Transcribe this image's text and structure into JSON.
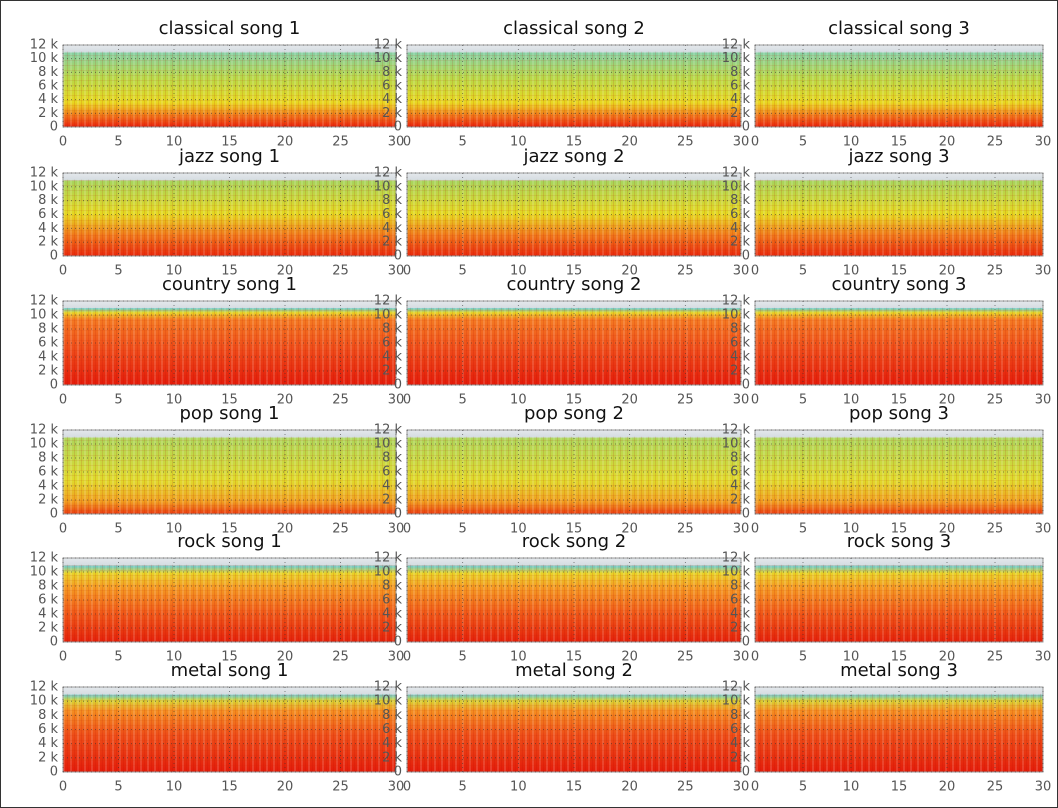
{
  "chart_data": [
    {
      "type": "spectrogram",
      "title": "classical song 1",
      "xlim": [
        0,
        30
      ],
      "ylim": [
        0,
        12000
      ],
      "xticks": [
        0,
        5,
        10,
        15,
        20,
        25,
        30
      ],
      "yticks": [
        0,
        {
          "value": 2000,
          "label": "2 k"
        },
        {
          "value": 4000,
          "label": "4 k"
        },
        {
          "value": 6000,
          "label": "6 k"
        },
        {
          "value": 8000,
          "label": "8 k"
        },
        {
          "value": 10000,
          "label": "10 k"
        },
        {
          "value": 12000,
          "label": "12 k"
        }
      ],
      "grid": true
    },
    {
      "type": "spectrogram",
      "title": "classical song 2",
      "xlim": [
        0,
        30
      ],
      "ylim": [
        0,
        12000
      ],
      "xticks": [
        0,
        5,
        10,
        15,
        20,
        25,
        30
      ],
      "yticks": [
        0,
        {
          "value": 2000,
          "label": "2 k"
        },
        {
          "value": 4000,
          "label": "4 k"
        },
        {
          "value": 6000,
          "label": "6 k"
        },
        {
          "value": 8000,
          "label": "8 k"
        },
        {
          "value": 10000,
          "label": "10 k"
        },
        {
          "value": 12000,
          "label": "12 k"
        }
      ],
      "grid": true
    },
    {
      "type": "spectrogram",
      "title": "classical song 3",
      "xlim": [
        0,
        30
      ],
      "ylim": [
        0,
        12000
      ],
      "xticks": [
        0,
        5,
        10,
        15,
        20,
        25,
        30
      ],
      "yticks": [
        0,
        {
          "value": 2000,
          "label": "2 k"
        },
        {
          "value": 4000,
          "label": "4 k"
        },
        {
          "value": 6000,
          "label": "6 k"
        },
        {
          "value": 8000,
          "label": "8 k"
        },
        {
          "value": 10000,
          "label": "10 k"
        },
        {
          "value": 12000,
          "label": "12 k"
        }
      ],
      "grid": true
    },
    {
      "type": "spectrogram",
      "title": "jazz song 1",
      "xlim": [
        0,
        30
      ],
      "ylim": [
        0,
        12000
      ],
      "xticks": [
        0,
        5,
        10,
        15,
        20,
        25,
        30
      ],
      "yticks": [
        0,
        {
          "value": 2000,
          "label": "2 k"
        },
        {
          "value": 4000,
          "label": "4 k"
        },
        {
          "value": 6000,
          "label": "6 k"
        },
        {
          "value": 8000,
          "label": "8 k"
        },
        {
          "value": 10000,
          "label": "10 k"
        },
        {
          "value": 12000,
          "label": "12 k"
        }
      ],
      "grid": true
    },
    {
      "type": "spectrogram",
      "title": "jazz song 2",
      "xlim": [
        0,
        30
      ],
      "ylim": [
        0,
        12000
      ],
      "xticks": [
        0,
        5,
        10,
        15,
        20,
        25,
        30
      ],
      "yticks": [
        0,
        {
          "value": 2000,
          "label": "2 k"
        },
        {
          "value": 4000,
          "label": "4 k"
        },
        {
          "value": 6000,
          "label": "6 k"
        },
        {
          "value": 8000,
          "label": "8 k"
        },
        {
          "value": 10000,
          "label": "10 k"
        },
        {
          "value": 12000,
          "label": "12 k"
        }
      ],
      "grid": true
    },
    {
      "type": "spectrogram",
      "title": "jazz song 3",
      "xlim": [
        0,
        30
      ],
      "ylim": [
        0,
        12000
      ],
      "xticks": [
        0,
        5,
        10,
        15,
        20,
        25,
        30
      ],
      "yticks": [
        0,
        {
          "value": 2000,
          "label": "2 k"
        },
        {
          "value": 4000,
          "label": "4 k"
        },
        {
          "value": 6000,
          "label": "6 k"
        },
        {
          "value": 8000,
          "label": "8 k"
        },
        {
          "value": 10000,
          "label": "10 k"
        },
        {
          "value": 12000,
          "label": "12 k"
        }
      ],
      "grid": true
    },
    {
      "type": "spectrogram",
      "title": "country song 1",
      "xlim": [
        0,
        30
      ],
      "ylim": [
        0,
        12000
      ],
      "xticks": [
        0,
        5,
        10,
        15,
        20,
        25,
        30
      ],
      "yticks": [
        0,
        {
          "value": 2000,
          "label": "2 k"
        },
        {
          "value": 4000,
          "label": "4 k"
        },
        {
          "value": 6000,
          "label": "6 k"
        },
        {
          "value": 8000,
          "label": "8 k"
        },
        {
          "value": 10000,
          "label": "10 k"
        },
        {
          "value": 12000,
          "label": "12 k"
        }
      ],
      "grid": true
    },
    {
      "type": "spectrogram",
      "title": "country song 2",
      "xlim": [
        0,
        30
      ],
      "ylim": [
        0,
        12000
      ],
      "xticks": [
        0,
        5,
        10,
        15,
        20,
        25,
        30
      ],
      "yticks": [
        0,
        {
          "value": 2000,
          "label": "2 k"
        },
        {
          "value": 4000,
          "label": "4 k"
        },
        {
          "value": 6000,
          "label": "6 k"
        },
        {
          "value": 8000,
          "label": "8 k"
        },
        {
          "value": 10000,
          "label": "10 k"
        },
        {
          "value": 12000,
          "label": "12 k"
        }
      ],
      "grid": true
    },
    {
      "type": "spectrogram",
      "title": "country song 3",
      "xlim": [
        0,
        30
      ],
      "ylim": [
        0,
        12000
      ],
      "xticks": [
        0,
        5,
        10,
        15,
        20,
        25,
        30
      ],
      "yticks": [
        0,
        {
          "value": 2000,
          "label": "2 k"
        },
        {
          "value": 4000,
          "label": "4 k"
        },
        {
          "value": 6000,
          "label": "6 k"
        },
        {
          "value": 8000,
          "label": "8 k"
        },
        {
          "value": 10000,
          "label": "10 k"
        },
        {
          "value": 12000,
          "label": "12 k"
        }
      ],
      "grid": true
    },
    {
      "type": "spectrogram",
      "title": "pop song 1",
      "xlim": [
        0,
        30
      ],
      "ylim": [
        0,
        12000
      ],
      "xticks": [
        0,
        5,
        10,
        15,
        20,
        25,
        30
      ],
      "yticks": [
        0,
        {
          "value": 2000,
          "label": "2 k"
        },
        {
          "value": 4000,
          "label": "4 k"
        },
        {
          "value": 6000,
          "label": "6 k"
        },
        {
          "value": 8000,
          "label": "8 k"
        },
        {
          "value": 10000,
          "label": "10 k"
        },
        {
          "value": 12000,
          "label": "12 k"
        }
      ],
      "grid": true
    },
    {
      "type": "spectrogram",
      "title": "pop song 2",
      "xlim": [
        0,
        30
      ],
      "ylim": [
        0,
        12000
      ],
      "xticks": [
        0,
        5,
        10,
        15,
        20,
        25,
        30
      ],
      "yticks": [
        0,
        {
          "value": 2000,
          "label": "2 k"
        },
        {
          "value": 4000,
          "label": "4 k"
        },
        {
          "value": 6000,
          "label": "6 k"
        },
        {
          "value": 8000,
          "label": "8 k"
        },
        {
          "value": 10000,
          "label": "10 k"
        },
        {
          "value": 12000,
          "label": "12 k"
        }
      ],
      "grid": true
    },
    {
      "type": "spectrogram",
      "title": "pop song 3",
      "xlim": [
        0,
        30
      ],
      "ylim": [
        0,
        12000
      ],
      "xticks": [
        0,
        5,
        10,
        15,
        20,
        25,
        30
      ],
      "yticks": [
        0,
        {
          "value": 2000,
          "label": "2 k"
        },
        {
          "value": 4000,
          "label": "4 k"
        },
        {
          "value": 6000,
          "label": "6 k"
        },
        {
          "value": 8000,
          "label": "8 k"
        },
        {
          "value": 10000,
          "label": "10 k"
        },
        {
          "value": 12000,
          "label": "12 k"
        }
      ],
      "grid": true
    },
    {
      "type": "spectrogram",
      "title": "rock song 1",
      "xlim": [
        0,
        30
      ],
      "ylim": [
        0,
        12000
      ],
      "xticks": [
        0,
        5,
        10,
        15,
        20,
        25,
        30
      ],
      "yticks": [
        0,
        {
          "value": 2000,
          "label": "2 k"
        },
        {
          "value": 4000,
          "label": "4 k"
        },
        {
          "value": 6000,
          "label": "6 k"
        },
        {
          "value": 8000,
          "label": "8 k"
        },
        {
          "value": 10000,
          "label": "10 k"
        },
        {
          "value": 12000,
          "label": "12 k"
        }
      ],
      "grid": true
    },
    {
      "type": "spectrogram",
      "title": "rock song 2",
      "xlim": [
        0,
        30
      ],
      "ylim": [
        0,
        12000
      ],
      "xticks": [
        0,
        5,
        10,
        15,
        20,
        25,
        30
      ],
      "yticks": [
        0,
        {
          "value": 2000,
          "label": "2 k"
        },
        {
          "value": 4000,
          "label": "4 k"
        },
        {
          "value": 6000,
          "label": "6 k"
        },
        {
          "value": 8000,
          "label": "8 k"
        },
        {
          "value": 10000,
          "label": "10 k"
        },
        {
          "value": 12000,
          "label": "12 k"
        }
      ],
      "grid": true
    },
    {
      "type": "spectrogram",
      "title": "rock song 3",
      "xlim": [
        0,
        30
      ],
      "ylim": [
        0,
        12000
      ],
      "xticks": [
        0,
        5,
        10,
        15,
        20,
        25,
        30
      ],
      "yticks": [
        0,
        {
          "value": 2000,
          "label": "2 k"
        },
        {
          "value": 4000,
          "label": "4 k"
        },
        {
          "value": 6000,
          "label": "6 k"
        },
        {
          "value": 8000,
          "label": "8 k"
        },
        {
          "value": 10000,
          "label": "10 k"
        },
        {
          "value": 12000,
          "label": "12 k"
        }
      ],
      "grid": true
    },
    {
      "type": "spectrogram",
      "title": "metal song 1",
      "xlim": [
        0,
        30
      ],
      "ylim": [
        0,
        12000
      ],
      "xticks": [
        0,
        5,
        10,
        15,
        20,
        25,
        30
      ],
      "yticks": [
        0,
        {
          "value": 2000,
          "label": "2 k"
        },
        {
          "value": 4000,
          "label": "4 k"
        },
        {
          "value": 6000,
          "label": "6 k"
        },
        {
          "value": 8000,
          "label": "8 k"
        },
        {
          "value": 10000,
          "label": "10 k"
        },
        {
          "value": 12000,
          "label": "12 k"
        }
      ],
      "grid": true
    },
    {
      "type": "spectrogram",
      "title": "metal song 2",
      "xlim": [
        0,
        30
      ],
      "ylim": [
        0,
        12000
      ],
      "xticks": [
        0,
        5,
        10,
        15,
        20,
        25,
        30
      ],
      "yticks": [
        0,
        {
          "value": 2000,
          "label": "2 k"
        },
        {
          "value": 4000,
          "label": "4 k"
        },
        {
          "value": 6000,
          "label": "6 k"
        },
        {
          "value": 8000,
          "label": "8 k"
        },
        {
          "value": 10000,
          "label": "10 k"
        },
        {
          "value": 12000,
          "label": "12 k"
        }
      ],
      "grid": true
    },
    {
      "type": "spectrogram",
      "title": "metal song 3",
      "xlim": [
        0,
        30
      ],
      "ylim": [
        0,
        12000
      ],
      "xticks": [
        0,
        5,
        10,
        15,
        20,
        25,
        30
      ],
      "yticks": [
        0,
        {
          "value": 2000,
          "label": "2 k"
        },
        {
          "value": 4000,
          "label": "4 k"
        },
        {
          "value": 6000,
          "label": "6 k"
        },
        {
          "value": 8000,
          "label": "8 k"
        },
        {
          "value": 10000,
          "label": "10 k"
        },
        {
          "value": 12000,
          "label": "12 k"
        }
      ],
      "grid": true
    }
  ]
}
